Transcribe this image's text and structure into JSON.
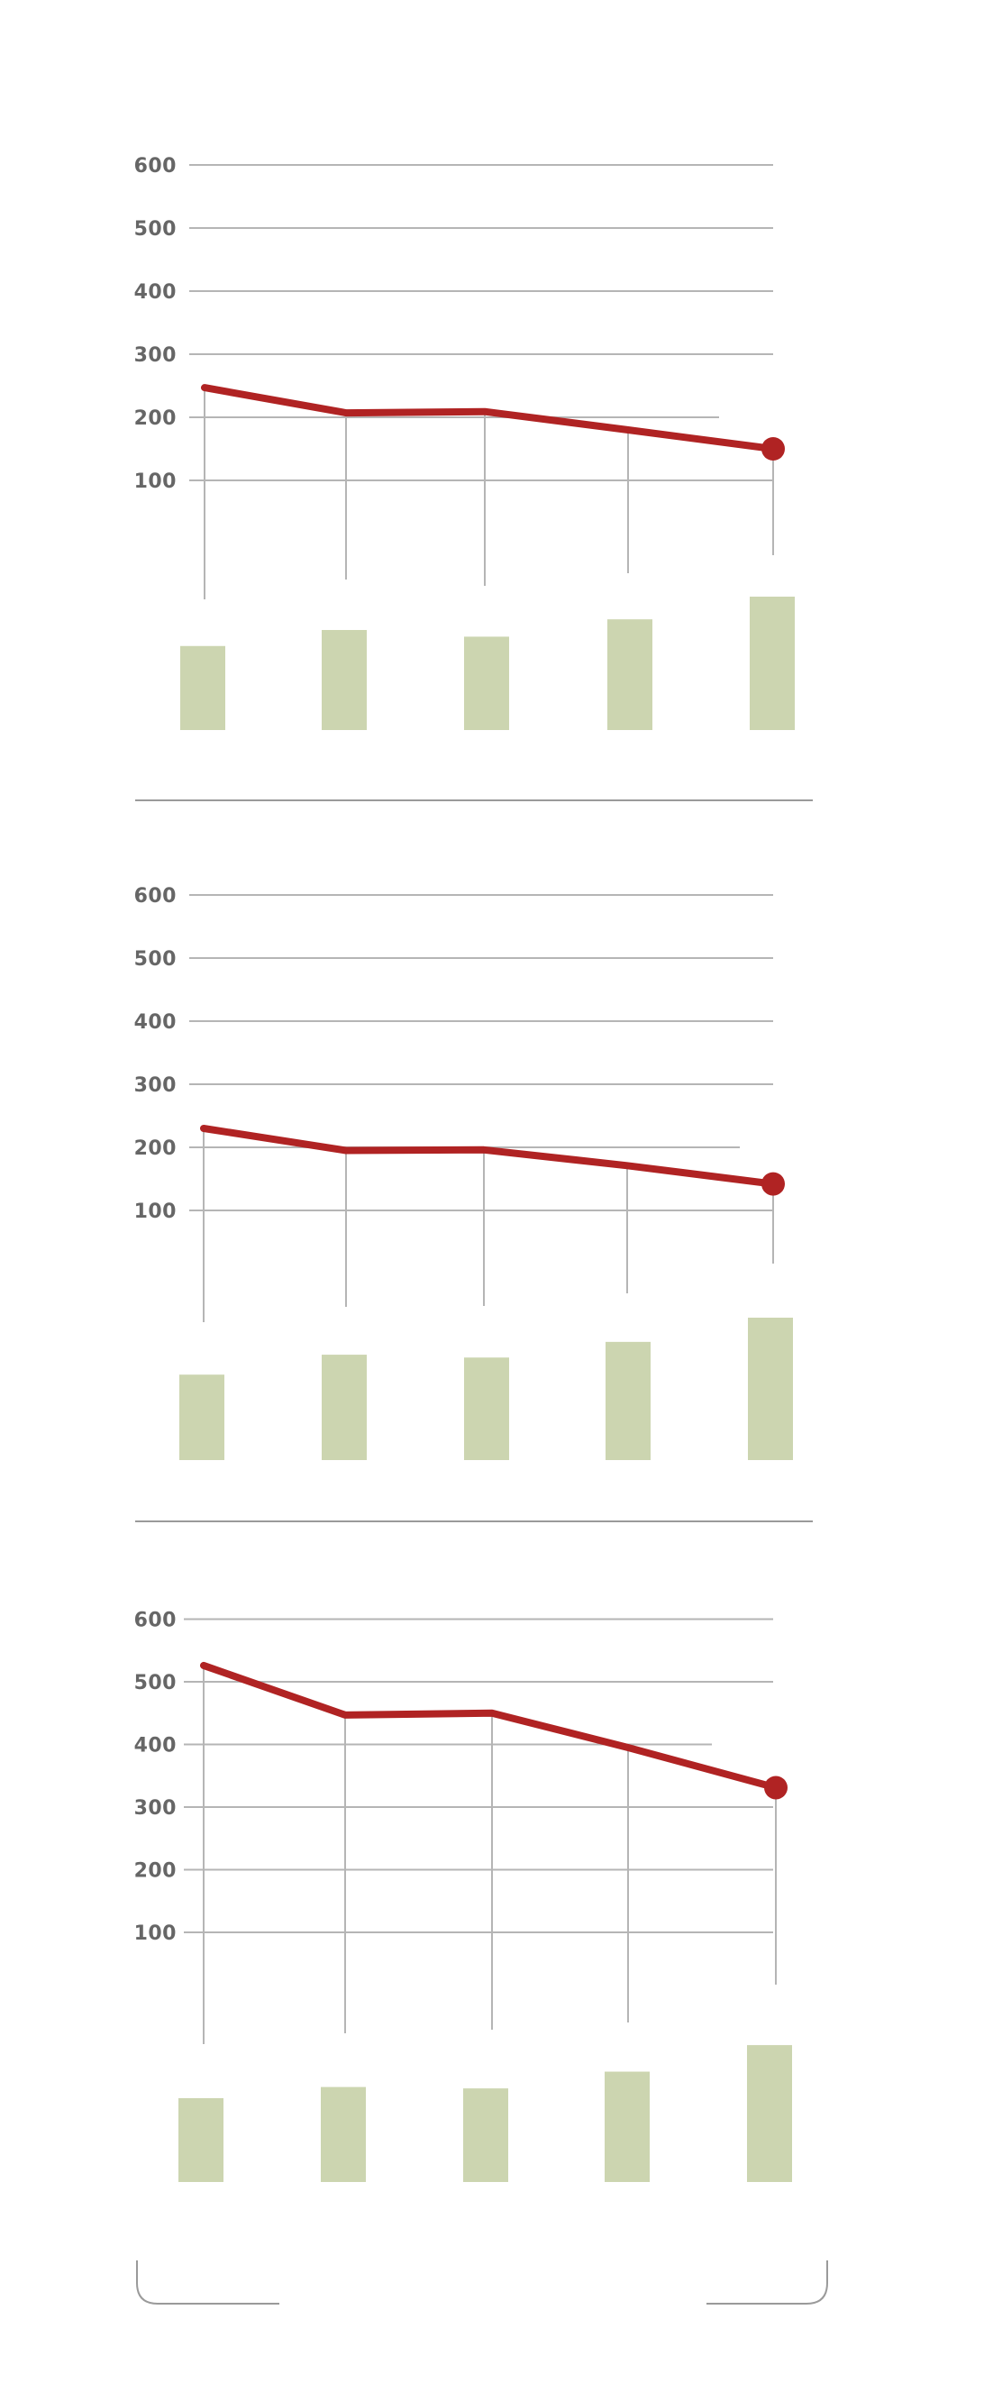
{
  "colors": {
    "line": "#b02323",
    "bar": "#ccd5b0",
    "grid": "#b5b5b5",
    "label": "#666666",
    "divider": "#9a9a9a"
  },
  "chart_data": [
    {
      "type": "line",
      "title": "",
      "xlabel": "",
      "ylabel": "",
      "ylim": [
        0,
        600
      ],
      "y_ticks": [
        "100",
        "200",
        "300",
        "400",
        "500",
        "600"
      ],
      "grid": true,
      "series": [
        {
          "type": "line",
          "values": [
            247,
            207,
            209,
            180,
            150
          ]
        },
        {
          "type": "bar",
          "relative_values": [
            0.63,
            0.75,
            0.7,
            0.83,
            1.0
          ]
        }
      ]
    },
    {
      "type": "line",
      "title": "",
      "xlabel": "",
      "ylabel": "",
      "ylim": [
        0,
        600
      ],
      "y_ticks": [
        "100",
        "200",
        "300",
        "400",
        "500",
        "600"
      ],
      "grid": true,
      "series": [
        {
          "type": "line",
          "values": [
            230,
            195,
            196,
            171,
            142
          ]
        },
        {
          "type": "bar",
          "relative_values": [
            0.6,
            0.74,
            0.72,
            0.83,
            1.0
          ]
        }
      ]
    },
    {
      "type": "line",
      "title": "",
      "xlabel": "",
      "ylabel": "",
      "ylim": [
        0,
        600
      ],
      "y_ticks": [
        "100",
        "200",
        "300",
        "400",
        "500",
        "600"
      ],
      "grid": true,
      "series": [
        {
          "type": "line",
          "values": [
            526,
            447,
            450,
            395,
            331
          ]
        },
        {
          "type": "bar",
          "relative_values": [
            0.6,
            0.68,
            0.67,
            0.79,
            0.98
          ]
        }
      ]
    }
  ]
}
